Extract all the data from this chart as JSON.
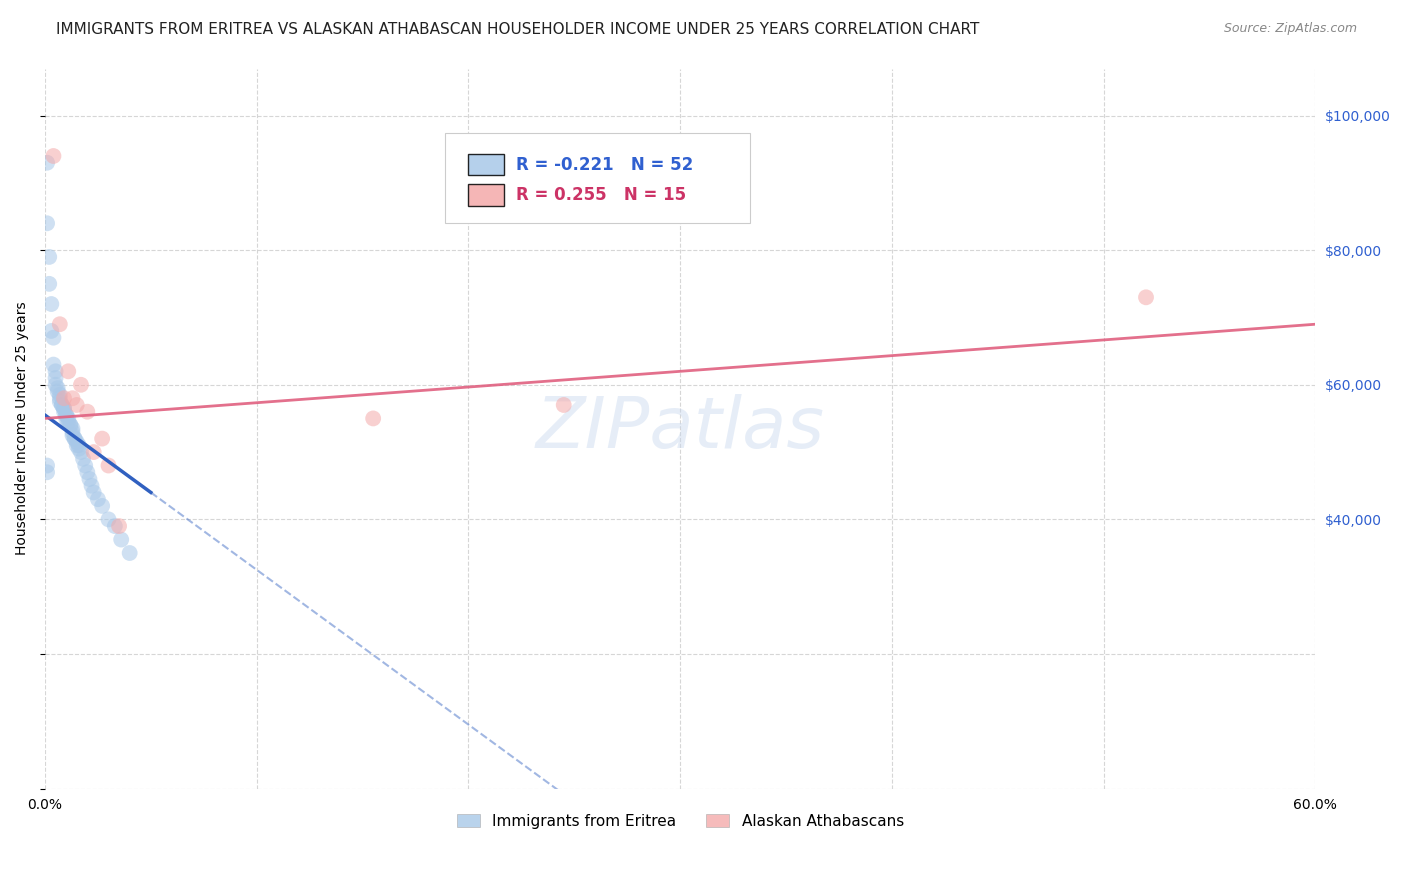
{
  "title": "IMMIGRANTS FROM ERITREA VS ALASKAN ATHABASCAN HOUSEHOLDER INCOME UNDER 25 YEARS CORRELATION CHART",
  "source": "Source: ZipAtlas.com",
  "ylabel": "Householder Income Under 25 years",
  "xlim": [
    0.0,
    0.6
  ],
  "ylim": [
    0,
    107000
  ],
  "yticks": [
    0,
    20000,
    40000,
    60000,
    80000,
    100000
  ],
  "ytick_labels_right": [
    "",
    "",
    "$40,000",
    "$60,000",
    "$80,000",
    "$100,000"
  ],
  "xticks": [
    0.0,
    0.1,
    0.2,
    0.3,
    0.4,
    0.5,
    0.6
  ],
  "xtick_labels": [
    "0.0%",
    "",
    "",
    "",
    "",
    "",
    "60.0%"
  ],
  "legend_label1": "Immigrants from Eritrea",
  "legend_label2": "Alaskan Athabascans",
  "R1": -0.221,
  "N1": 52,
  "R2": 0.255,
  "N2": 15,
  "color1": "#a8c8e8",
  "color2": "#f4aaaa",
  "line_color1": "#3060c0",
  "line_color2": "#e06080",
  "background_color": "#ffffff",
  "grid_color": "#cccccc",
  "blue_dots_x": [
    0.001,
    0.001,
    0.002,
    0.002,
    0.003,
    0.003,
    0.004,
    0.004,
    0.005,
    0.005,
    0.005,
    0.006,
    0.006,
    0.007,
    0.007,
    0.007,
    0.008,
    0.008,
    0.009,
    0.009,
    0.009,
    0.01,
    0.01,
    0.01,
    0.011,
    0.011,
    0.012,
    0.012,
    0.013,
    0.013,
    0.013,
    0.014,
    0.014,
    0.015,
    0.015,
    0.016,
    0.016,
    0.017,
    0.018,
    0.019,
    0.02,
    0.021,
    0.022,
    0.023,
    0.025,
    0.027,
    0.03,
    0.033,
    0.036,
    0.04,
    0.001,
    0.001
  ],
  "blue_dots_y": [
    93000,
    84000,
    79000,
    75000,
    72000,
    68000,
    67000,
    63000,
    62000,
    61000,
    60000,
    59500,
    59000,
    58500,
    58000,
    57500,
    57000,
    57000,
    56500,
    56500,
    56000,
    55500,
    55500,
    55000,
    55000,
    54500,
    54000,
    54000,
    53500,
    53000,
    52500,
    52000,
    52000,
    51500,
    51000,
    51000,
    50500,
    50000,
    49000,
    48000,
    47000,
    46000,
    45000,
    44000,
    43000,
    42000,
    40000,
    39000,
    37000,
    35000,
    48000,
    47000
  ],
  "pink_dots_x": [
    0.004,
    0.007,
    0.009,
    0.011,
    0.013,
    0.015,
    0.017,
    0.02,
    0.023,
    0.027,
    0.03,
    0.035,
    0.155,
    0.245,
    0.52
  ],
  "pink_dots_y": [
    94000,
    69000,
    58000,
    62000,
    58000,
    57000,
    60000,
    56000,
    50000,
    52000,
    48000,
    39000,
    55000,
    57000,
    73000
  ],
  "blue_line_x0": 0.0,
  "blue_line_y0": 55500,
  "blue_line_x1": 0.05,
  "blue_line_y1": 44000,
  "blue_line_dash_x0": 0.05,
  "blue_line_dash_x1": 0.28,
  "pink_line_x0": 0.0,
  "pink_line_y0": 55000,
  "pink_line_x1": 0.6,
  "pink_line_y1": 69000,
  "title_fontsize": 11,
  "axis_label_fontsize": 10,
  "tick_fontsize": 10,
  "legend_fontsize": 11,
  "dot_size": 130,
  "dot_alpha": 0.55,
  "right_ytick_color": "#3060d0",
  "watermark": "ZIPatlas"
}
